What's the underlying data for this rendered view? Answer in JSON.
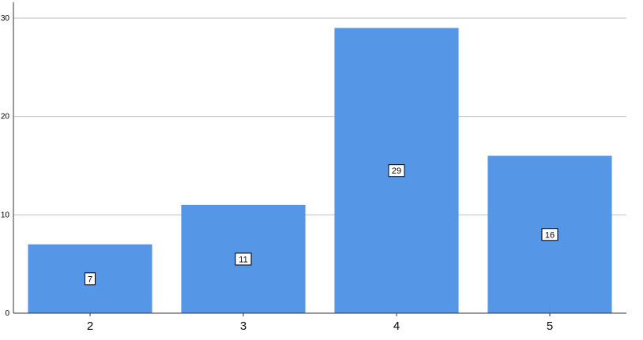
{
  "chart_data": {
    "type": "bar",
    "categories": [
      "2",
      "3",
      "4",
      "5"
    ],
    "values": [
      7,
      11,
      29,
      16
    ],
    "ylim": [
      0,
      31.6
    ],
    "yticks": [
      0,
      10,
      20,
      30
    ],
    "grid": true,
    "show_data_labels": true,
    "bar_color": "#5596E6",
    "gridline_color": "#BEBEBE",
    "axis_color": "#333333"
  }
}
